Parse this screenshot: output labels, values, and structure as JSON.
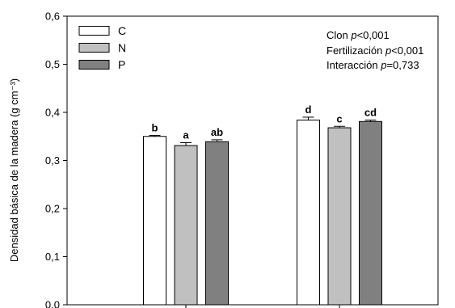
{
  "chart_data": {
    "type": "bar",
    "title": "",
    "ylabel": "Densidad básica de la madera (g cm⁻³)",
    "xlabel": "",
    "ylim": [
      0,
      0.6
    ],
    "yticks": [
      "0,0",
      "0,1",
      "0,2",
      "0,3",
      "0,4",
      "0,5",
      "0,6"
    ],
    "ytick_values": [
      0,
      0.1,
      0.2,
      0.3,
      0.4,
      0.5,
      0.6
    ],
    "groups": 2,
    "series": [
      {
        "name": "C",
        "color": "#ffffff",
        "values": [
          0.35,
          0.384
        ],
        "errors": [
          0.002,
          0.006
        ],
        "letters": [
          "b",
          "d"
        ]
      },
      {
        "name": "N",
        "color": "#c0c0c0",
        "values": [
          0.331,
          0.368
        ],
        "errors": [
          0.006,
          0.003
        ],
        "letters": [
          "a",
          "c"
        ]
      },
      {
        "name": "P",
        "color": "#808080",
        "values": [
          0.339,
          0.381
        ],
        "errors": [
          0.004,
          0.003
        ],
        "letters": [
          "ab",
          "cd"
        ]
      }
    ],
    "legend_position": "top-left",
    "annotations": [
      {
        "label": "Clon ",
        "p": "p",
        "value": "<0,001"
      },
      {
        "label": "Fertilización ",
        "p": "p",
        "value": "<0,001"
      },
      {
        "label": "Interacción ",
        "p": "p",
        "value": "=0,733"
      }
    ]
  }
}
